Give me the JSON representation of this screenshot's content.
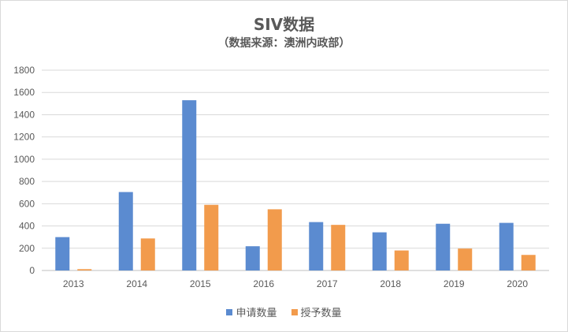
{
  "chart_data": {
    "type": "bar",
    "title": "SIV数据",
    "subtitle": "（数据来源：澳洲内政部）",
    "categories": [
      "2013",
      "2014",
      "2015",
      "2016",
      "2017",
      "2018",
      "2019",
      "2020"
    ],
    "series": [
      {
        "name": "申请数量",
        "color": "#5b8bd0",
        "values": [
          300,
          705,
          1530,
          218,
          435,
          343,
          420,
          428
        ]
      },
      {
        "name": "授予数量",
        "color": "#f29b4c",
        "values": [
          12,
          288,
          590,
          550,
          410,
          180,
          197,
          140
        ]
      }
    ],
    "ylim": [
      0,
      1800
    ],
    "yticks": [
      "0",
      "200",
      "400",
      "600",
      "800",
      "1000",
      "1200",
      "1400",
      "1600",
      "1800"
    ],
    "grid": true,
    "legend_position": "bottom"
  }
}
